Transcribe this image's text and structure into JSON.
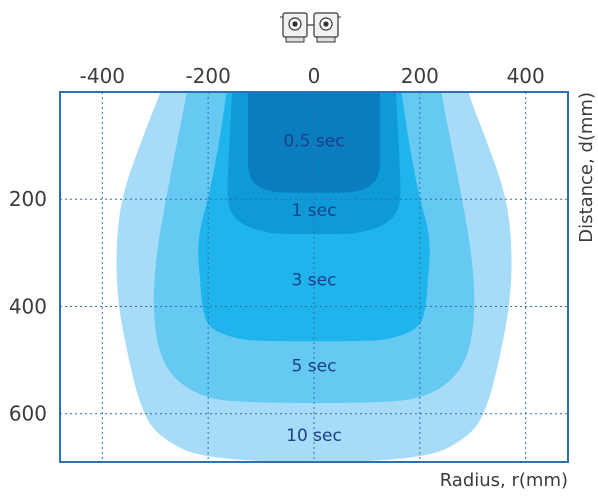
{
  "chart_data": {
    "type": "area",
    "title": "",
    "xlabel": "Radius, r(mm)",
    "ylabel": "Distance, d(mm)",
    "x_ticks": [
      -400,
      -200,
      0,
      200,
      400
    ],
    "y_ticks": [
      200,
      400,
      600
    ],
    "xlim": [
      -480,
      480
    ],
    "ylim": [
      0,
      690
    ],
    "y_inverted": true,
    "grid": true,
    "sensor_icon": "dual-camera-sensor-icon",
    "regions": [
      {
        "label": "10 sec",
        "color": "#a6dcf8",
        "radius_profile": [
          [
            0,
            290
          ],
          [
            100,
            330
          ],
          [
            200,
            365
          ],
          [
            300,
            375
          ],
          [
            400,
            370
          ],
          [
            500,
            350
          ],
          [
            580,
            330
          ],
          [
            640,
            300
          ],
          [
            690,
            200
          ]
        ]
      },
      {
        "label": "5 sec",
        "color": "#66c9f2",
        "radius_profile": [
          [
            0,
            240
          ],
          [
            100,
            260
          ],
          [
            200,
            280
          ],
          [
            300,
            298
          ],
          [
            400,
            305
          ],
          [
            480,
            295
          ],
          [
            530,
            270
          ],
          [
            565,
            220
          ],
          [
            580,
            150
          ]
        ]
      },
      {
        "label": "3 sec",
        "color": "#1fb4ec",
        "radius_profile": [
          [
            0,
            165
          ],
          [
            100,
            180
          ],
          [
            200,
            200
          ],
          [
            250,
            215
          ],
          [
            300,
            220
          ],
          [
            350,
            215
          ],
          [
            400,
            212
          ],
          [
            440,
            200
          ],
          [
            460,
            150
          ],
          [
            465,
            100
          ]
        ]
      },
      {
        "label": "1 sec",
        "color": "#0e9ad6",
        "radius_profile": [
          [
            0,
            155
          ],
          [
            100,
            160
          ],
          [
            200,
            165
          ],
          [
            230,
            155
          ],
          [
            250,
            130
          ],
          [
            262,
            90
          ],
          [
            265,
            60
          ]
        ]
      },
      {
        "label": "0.5 sec",
        "color": "#0a7dbf",
        "radius_profile": [
          [
            0,
            125
          ],
          [
            100,
            125
          ],
          [
            150,
            125
          ],
          [
            175,
            110
          ],
          [
            185,
            85
          ],
          [
            188,
            60
          ]
        ]
      }
    ],
    "label_positions": [
      {
        "label": "0.5 sec",
        "r": 0,
        "d": 90
      },
      {
        "label": "1 sec",
        "r": 0,
        "d": 220
      },
      {
        "label": "3 sec",
        "r": 0,
        "d": 350
      },
      {
        "label": "5 sec",
        "r": 0,
        "d": 510
      },
      {
        "label": "10 sec",
        "r": 0,
        "d": 640
      }
    ]
  }
}
